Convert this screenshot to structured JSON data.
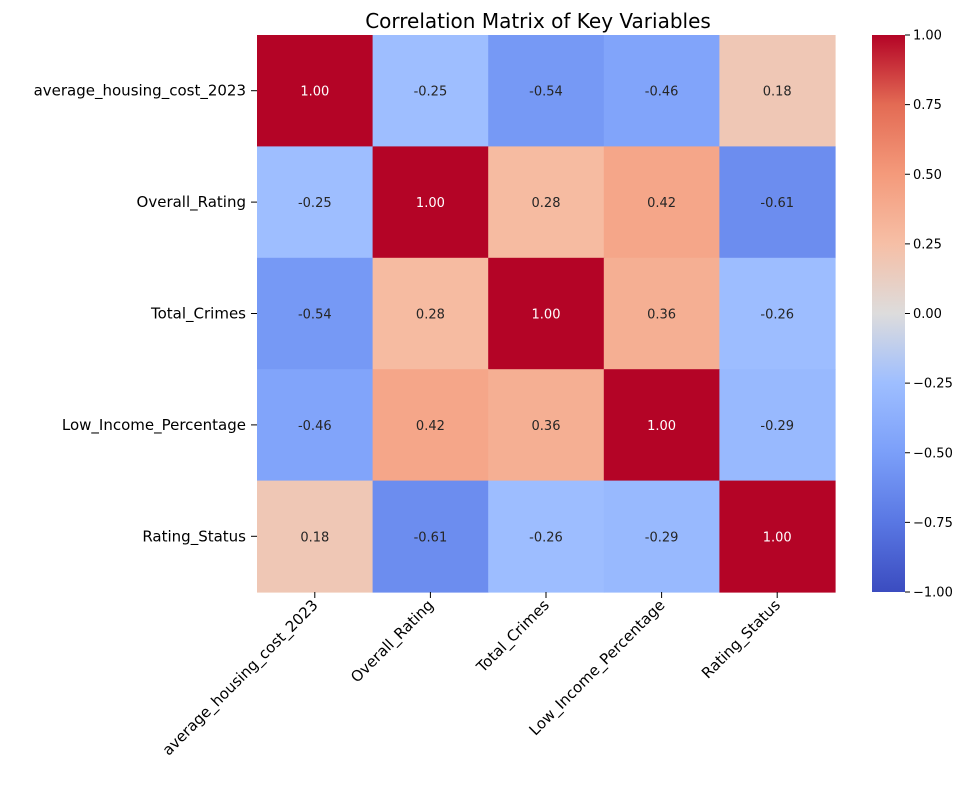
{
  "chart_data": {
    "type": "heatmap",
    "title": "Correlation Matrix of Key Variables",
    "row_labels": [
      "average_housing_cost_2023",
      "Overall_Rating",
      "Total_Crimes",
      "Low_Income_Percentage",
      "Rating_Status"
    ],
    "col_labels": [
      "average_housing_cost_2023",
      "Overall_Rating",
      "Total_Crimes",
      "Low_Income_Percentage",
      "Rating_Status"
    ],
    "values": [
      [
        1.0,
        -0.25,
        -0.54,
        -0.46,
        0.18
      ],
      [
        -0.25,
        1.0,
        0.28,
        0.42,
        -0.61
      ],
      [
        -0.54,
        0.28,
        1.0,
        0.36,
        -0.26
      ],
      [
        -0.46,
        0.42,
        0.36,
        1.0,
        -0.29
      ],
      [
        0.18,
        -0.61,
        -0.26,
        -0.29,
        1.0
      ]
    ],
    "cell_labels": [
      [
        "1.00",
        "-0.25",
        "-0.54",
        "-0.46",
        "0.18"
      ],
      [
        "-0.25",
        "1.00",
        "0.28",
        "0.42",
        "-0.61"
      ],
      [
        "-0.54",
        "0.28",
        "1.00",
        "0.36",
        "-0.26"
      ],
      [
        "-0.46",
        "0.42",
        "0.36",
        "1.00",
        "-0.29"
      ],
      [
        "0.18",
        "-0.61",
        "-0.26",
        "-0.29",
        "1.00"
      ]
    ],
    "colormap": "coolwarm",
    "vmin": -1.0,
    "vmax": 1.0,
    "colorbar": {
      "ticks": [
        1.0,
        0.75,
        0.5,
        0.25,
        0.0,
        -0.25,
        -0.5,
        -0.75,
        -1.0
      ],
      "tick_labels": [
        "1.00",
        "0.75",
        "0.50",
        "0.25",
        "0.00",
        "−0.25",
        "−0.50",
        "−0.75",
        "−1.00"
      ]
    },
    "grid": false,
    "legend": "colorbar-right"
  }
}
